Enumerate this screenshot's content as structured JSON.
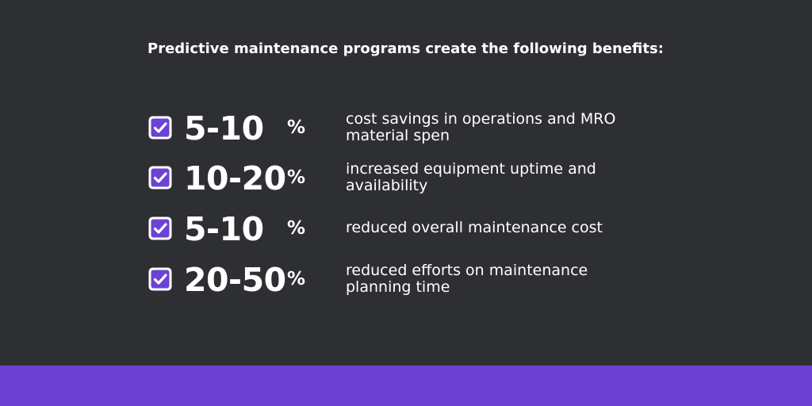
{
  "heading": "Predictive maintenance programs create the following benefits:",
  "colors": {
    "background": "#2e2f33",
    "accent": "#6c42d4",
    "text": "#ffffff"
  },
  "icon": "checkbox-checked-icon",
  "benefits": [
    {
      "range": "5-10",
      "unit": "%",
      "description_lines": [
        "cost savings in operations and MRO",
        "material spen"
      ]
    },
    {
      "range": "10-20",
      "unit": "%",
      "description_lines": [
        "increased equipment uptime and",
        "availability"
      ]
    },
    {
      "range": "5-10",
      "unit": "%",
      "description_lines": [
        "reduced overall maintenance cost"
      ]
    },
    {
      "range": "20-50",
      "unit": "%",
      "description_lines": [
        "reduced efforts on maintenance",
        "planning time"
      ]
    }
  ]
}
